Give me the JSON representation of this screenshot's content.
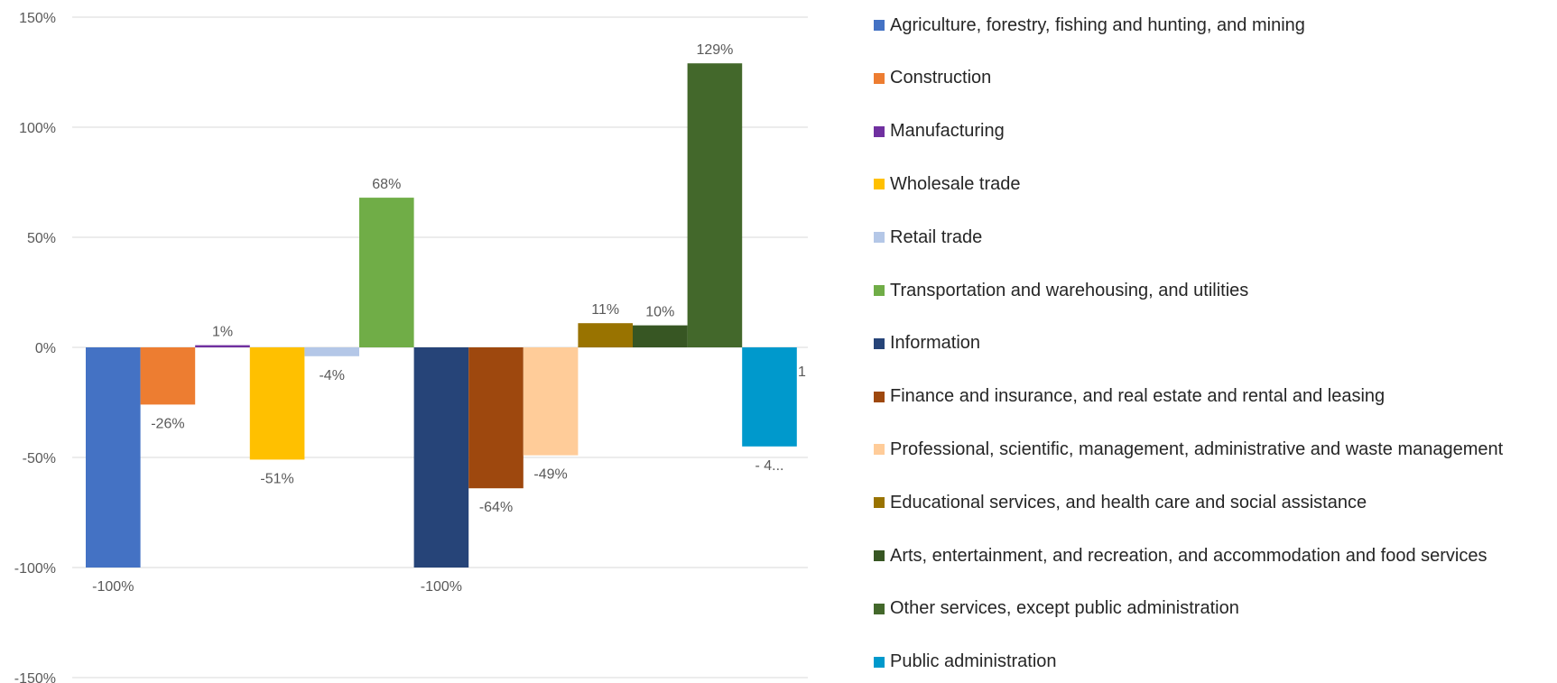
{
  "chart_data": {
    "type": "bar",
    "title": "",
    "xlabel": "",
    "ylabel": "",
    "ylim": [
      -1.5,
      1.5
    ],
    "y_ticks": [
      1.5,
      1.0,
      0.5,
      0.0,
      -0.5,
      -1.0,
      -1.5
    ],
    "y_tick_labels": [
      "150%",
      "100%",
      "50%",
      "0%",
      "-50%",
      "-100%",
      "-150%"
    ],
    "grid": true,
    "legend_position": "right",
    "series": [
      {
        "name": "Agriculture, forestry, fishing and hunting, and mining",
        "value": -1.0,
        "label": "-100%",
        "color": "#4472C4"
      },
      {
        "name": "Construction",
        "value": -0.26,
        "label": "-26%",
        "color": "#ED7D31"
      },
      {
        "name": "Manufacturing",
        "value": 0.01,
        "label": "1%",
        "color": "#7030A0"
      },
      {
        "name": "Wholesale trade",
        "value": -0.51,
        "label": "-51%",
        "color": "#FFC000"
      },
      {
        "name": "Retail trade",
        "value": -0.04,
        "label": "-4%",
        "color": "#B4C7E7"
      },
      {
        "name": "Transportation and warehousing, and utilities",
        "value": 0.68,
        "label": "68%",
        "color": "#70AD47"
      },
      {
        "name": "Information",
        "value": -1.0,
        "label": "-100%",
        "color": "#264478"
      },
      {
        "name": "Finance and insurance, and real estate and rental and leasing",
        "value": -0.64,
        "label": "-64%",
        "color": "#9E480E"
      },
      {
        "name": "Professional, scientific, management, administrative and waste management",
        "value": -0.49,
        "label": "-49%",
        "color": "#FFCC99"
      },
      {
        "name": "Educational services, and health care and social assistance",
        "value": 0.11,
        "label": "11%",
        "color": "#997300"
      },
      {
        "name": "Arts, entertainment, and recreation, and accommodation and food services",
        "value": 0.1,
        "label": "10%",
        "color": "#375623"
      },
      {
        "name": "Other services, except public administration",
        "value": 1.29,
        "label": "129%",
        "color": "#43682B"
      },
      {
        "name": "Public administration",
        "value": -0.45,
        "label": "- 4...",
        "color": "#0099CC"
      }
    ],
    "clipped_annotation": "1"
  }
}
